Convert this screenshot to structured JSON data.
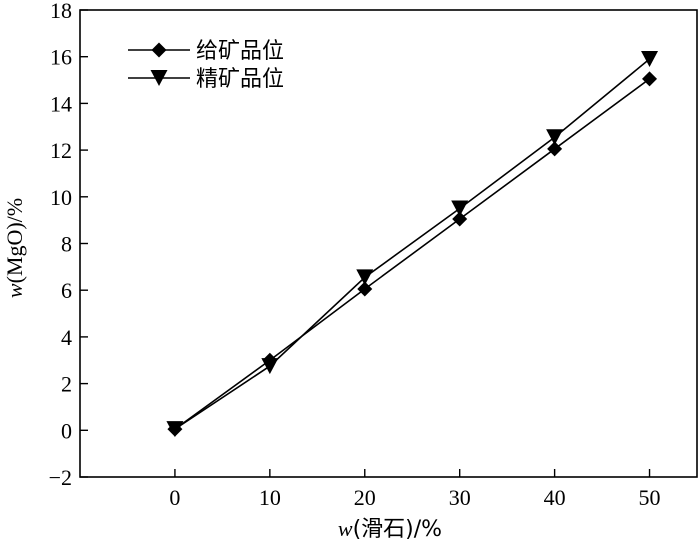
{
  "chart_data": {
    "type": "line",
    "x": [
      0,
      10,
      20,
      30,
      40,
      50
    ],
    "series": [
      {
        "name": "给矿品位",
        "marker": "diamond",
        "values": [
          0.05,
          3.0,
          6.05,
          9.05,
          12.05,
          15.05
        ]
      },
      {
        "name": "精矿品位",
        "marker": "triangle-down",
        "values": [
          0.05,
          2.75,
          6.55,
          9.5,
          12.55,
          15.9
        ]
      }
    ],
    "xlabel": {
      "var": "w",
      "rest": "(滑石)/%"
    },
    "ylabel": {
      "var": "w",
      "rest": "(MgO)/%"
    },
    "xlim": [
      -10,
      55
    ],
    "ylim": [
      -2,
      18
    ],
    "xticks": [
      0,
      10,
      20,
      30,
      40,
      50
    ],
    "yticks": [
      -2,
      0,
      2,
      4,
      6,
      8,
      10,
      12,
      14,
      16,
      18
    ],
    "ytick_labels": [
      "−2",
      "0",
      "2",
      "4",
      "6",
      "8",
      "10",
      "12",
      "14",
      "16",
      "18"
    ],
    "grid": false,
    "legend_position": "top-left",
    "color": "#000000"
  }
}
